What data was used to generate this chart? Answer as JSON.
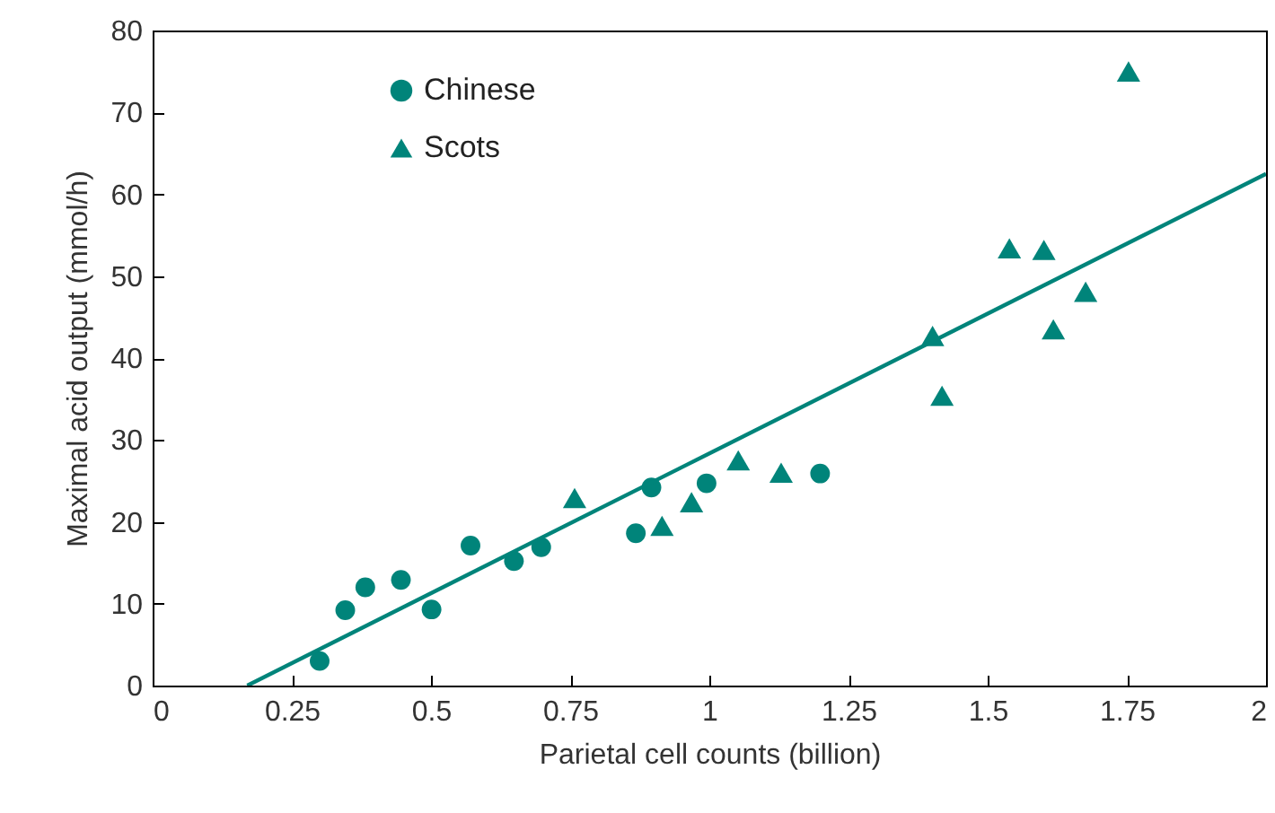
{
  "chart_data": {
    "type": "scatter",
    "xlabel": "Parietal cell counts (billion)",
    "ylabel": "Maximal acid output (mmol/h)",
    "xlim": [
      0,
      2
    ],
    "ylim": [
      0,
      80
    ],
    "xticks": [
      0,
      0.25,
      0.5,
      0.75,
      1,
      1.25,
      1.5,
      1.75,
      2
    ],
    "yticks": [
      0,
      10,
      20,
      30,
      40,
      50,
      60,
      70,
      80
    ],
    "grid": false,
    "legend": "top left",
    "series": [
      {
        "name": "Chinese",
        "color": "#00847a",
        "marker": "circle",
        "x": [
          0.3,
          0.346,
          0.382,
          0.446,
          0.501,
          0.571,
          0.649,
          0.698,
          0.868,
          0.896,
          0.995,
          1.199
        ],
        "values": [
          3,
          9.2,
          12,
          12.9,
          9.3,
          17.1,
          15.2,
          16.9,
          18.6,
          24.2,
          24.7,
          25.9
        ]
      },
      {
        "name": "Scots",
        "color": "#00847a",
        "marker": "triangle",
        "x": [
          0.758,
          0.915,
          0.968,
          1.052,
          1.129,
          1.401,
          1.418,
          1.539,
          1.601,
          1.618,
          1.676,
          1.753
        ],
        "values": [
          22.9,
          19.5,
          22.4,
          27.5,
          26,
          42.7,
          35.4,
          53.4,
          53.2,
          43.5,
          48.1,
          75
        ]
      },
      {
        "type": "line",
        "color": "#00847a",
        "line_style": "solid",
        "x": [
          0.17,
          2
        ],
        "values": [
          0,
          62.5
        ]
      }
    ]
  }
}
